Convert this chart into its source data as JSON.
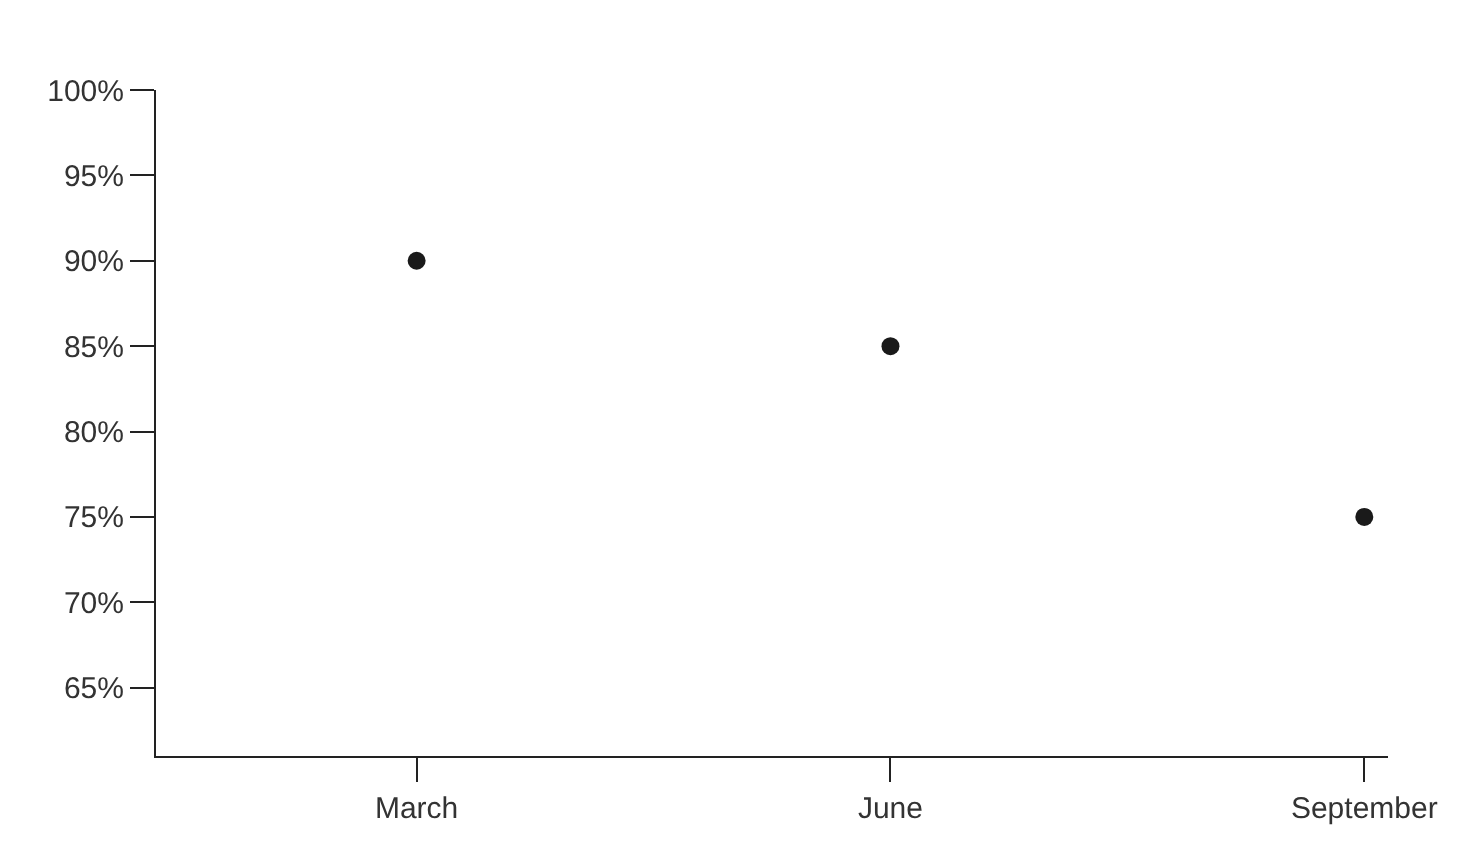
{
  "chart_data": {
    "type": "scatter",
    "categories": [
      "March",
      "June",
      "September"
    ],
    "series": [
      {
        "color": "#1a1a1a",
        "values": [
          90,
          85,
          75
        ]
      }
    ],
    "ylim": [
      61,
      100
    ],
    "yticks": [
      {
        "value": 65,
        "label": "65%"
      },
      {
        "value": 70,
        "label": "70%"
      },
      {
        "value": 75,
        "label": "75%"
      },
      {
        "value": 80,
        "label": "80%"
      },
      {
        "value": 85,
        "label": "85%"
      },
      {
        "value": 90,
        "label": "90%"
      },
      {
        "value": 95,
        "label": "95%"
      },
      {
        "value": 100,
        "label": "100%"
      }
    ],
    "grid": false,
    "marker": "circle"
  }
}
